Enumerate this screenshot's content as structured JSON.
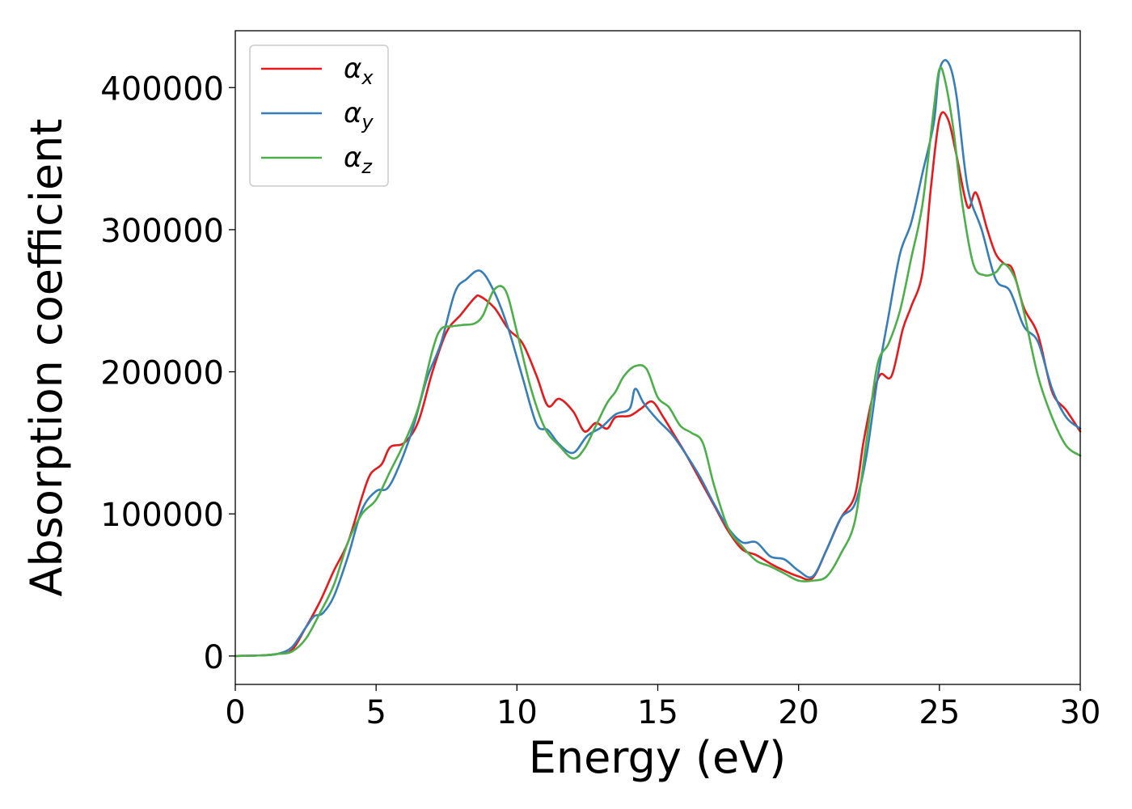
{
  "chart_data": {
    "type": "line",
    "xlabel": "Energy (eV)",
    "ylabel": "Absorption coefficient",
    "xlim": [
      0,
      30
    ],
    "ylim": [
      -20000,
      440000
    ],
    "xticks": [
      0,
      5,
      10,
      15,
      20,
      25,
      30
    ],
    "xtick_labels": [
      "0",
      "5",
      "10",
      "15",
      "20",
      "25",
      "30"
    ],
    "yticks": [
      0,
      100000,
      200000,
      300000,
      400000
    ],
    "ytick_labels": [
      "0",
      "100000",
      "200000",
      "300000",
      "400000"
    ],
    "grid": false,
    "legend_position": "top-left",
    "series": [
      {
        "name": "α_x",
        "label_base": "α",
        "label_sub": "x",
        "color": "#e41a1c",
        "x": [
          0,
          1,
          1.5,
          2,
          2.5,
          3,
          3.5,
          4,
          4.5,
          4.8,
          5.2,
          5.5,
          6,
          6.5,
          7,
          7.5,
          8,
          8.5,
          8.7,
          9.2,
          9.7,
          10.2,
          10.7,
          11.1,
          11.5,
          12,
          12.4,
          12.8,
          13.2,
          13.5,
          14,
          14.4,
          14.8,
          15.2,
          15.6,
          16,
          16.5,
          17,
          17.5,
          18,
          18.5,
          19,
          19.5,
          20,
          20.5,
          21,
          21.5,
          22,
          22.3,
          22.6,
          22.9,
          23.3,
          23.7,
          24,
          24.4,
          24.7,
          25,
          25.3,
          25.6,
          26,
          26.3,
          26.7,
          27,
          27.3,
          27.6,
          28,
          28.5,
          29,
          29.5,
          30
        ],
        "y": [
          0,
          500,
          1500,
          4000,
          20000,
          38000,
          60000,
          80000,
          112000,
          128000,
          135000,
          147000,
          150000,
          165000,
          200000,
          228000,
          240000,
          252000,
          253000,
          245000,
          230000,
          220000,
          197000,
          176000,
          181000,
          172000,
          158000,
          164000,
          160000,
          168000,
          169000,
          174000,
          179000,
          168000,
          155000,
          142000,
          124000,
          106000,
          88000,
          75000,
          71000,
          65000,
          60000,
          56000,
          55000,
          75000,
          97000,
          113000,
          150000,
          180000,
          198000,
          197000,
          230000,
          246000,
          270000,
          330000,
          378000,
          378000,
          353000,
          316000,
          326000,
          300000,
          283000,
          276000,
          272000,
          245000,
          226000,
          186000,
          173000,
          158000
        ]
      },
      {
        "name": "α_y",
        "label_base": "α",
        "label_sub": "y",
        "color": "#377eb8",
        "x": [
          0,
          1,
          1.5,
          2,
          2.5,
          2.8,
          3.1,
          3.5,
          4,
          4.5,
          5,
          5.4,
          5.8,
          6.3,
          6.8,
          7.3,
          7.8,
          8.2,
          8.7,
          9.2,
          9.7,
          10.2,
          10.7,
          11.1,
          11.5,
          12,
          12.5,
          13,
          13.5,
          14,
          14.2,
          14.5,
          15,
          15.5,
          16,
          16.5,
          17,
          17.5,
          18,
          18.5,
          19,
          19.5,
          20,
          20.5,
          21,
          21.5,
          22,
          22.4,
          22.8,
          23.2,
          23.6,
          24,
          24.4,
          24.8,
          25,
          25.3,
          25.6,
          26,
          26.5,
          27,
          27.5,
          28,
          28.5,
          29,
          29.5,
          30
        ],
        "y": [
          0,
          500,
          1500,
          6000,
          20000,
          28000,
          30000,
          42000,
          70000,
          103000,
          116000,
          118000,
          133000,
          160000,
          195000,
          220000,
          256000,
          265000,
          271000,
          256000,
          230000,
          196000,
          163000,
          159000,
          149000,
          143000,
          155000,
          161000,
          170000,
          174000,
          188000,
          178000,
          166000,
          156000,
          142000,
          126000,
          107000,
          90000,
          80000,
          80000,
          70000,
          68000,
          60000,
          56000,
          75000,
          97000,
          107000,
          140000,
          195000,
          240000,
          283000,
          305000,
          340000,
          375000,
          412000,
          418000,
          395000,
          330000,
          300000,
          265000,
          257000,
          232000,
          221000,
          188000,
          168000,
          160000
        ]
      },
      {
        "name": "α_z",
        "label_base": "α",
        "label_sub": "z",
        "color": "#4daf4a",
        "x": [
          0,
          1,
          1.5,
          2,
          2.5,
          3,
          3.5,
          4,
          4.5,
          5,
          5.5,
          6,
          6.5,
          7,
          7.3,
          7.7,
          8.1,
          8.5,
          8.8,
          9.2,
          9.6,
          10,
          10.5,
          11,
          11.5,
          12,
          12.4,
          12.8,
          13.2,
          13.5,
          13.8,
          14.2,
          14.6,
          15,
          15.4,
          15.8,
          16.2,
          16.6,
          17,
          17.5,
          18,
          18.5,
          19,
          19.5,
          20,
          20.5,
          21,
          21.5,
          22,
          22.4,
          22.8,
          23.2,
          23.6,
          24,
          24.4,
          24.8,
          25,
          25.2,
          25.5,
          25.8,
          26.2,
          26.6,
          27,
          27.3,
          27.7,
          28,
          28.5,
          29,
          29.5,
          30
        ],
        "y": [
          0,
          500,
          1500,
          3000,
          12000,
          30000,
          50000,
          80000,
          100000,
          110000,
          130000,
          150000,
          175000,
          215000,
          230000,
          232000,
          233000,
          234000,
          240000,
          258000,
          257000,
          228000,
          188000,
          160000,
          148000,
          139000,
          146000,
          162000,
          178000,
          186000,
          197000,
          204000,
          202000,
          182000,
          175000,
          162000,
          157000,
          150000,
          120000,
          90000,
          77000,
          67000,
          63000,
          58000,
          53000,
          53000,
          56000,
          72000,
          95000,
          150000,
          205000,
          220000,
          243000,
          280000,
          318000,
          385000,
          413000,
          405000,
          370000,
          320000,
          276000,
          268000,
          270000,
          276000,
          265000,
          242000,
          197000,
          168000,
          148000,
          141000
        ]
      }
    ]
  }
}
